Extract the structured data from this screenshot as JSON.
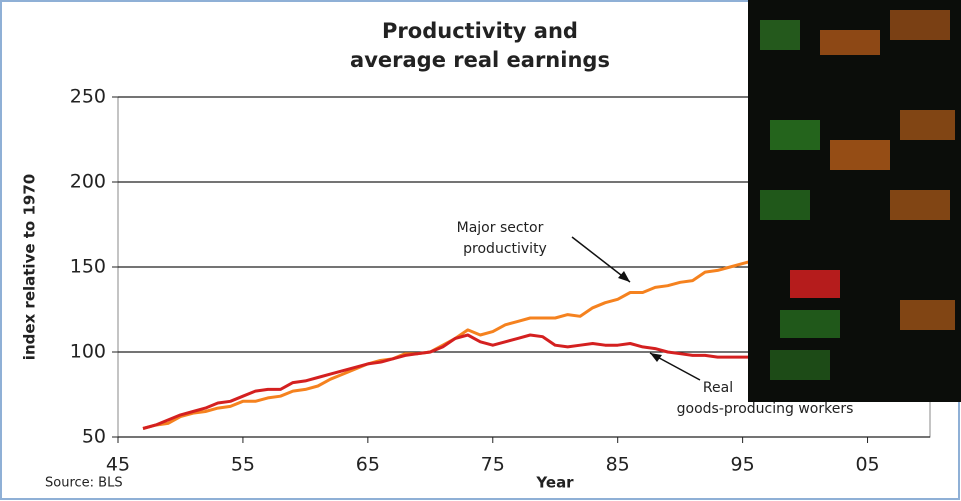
{
  "chart_data": {
    "type": "line",
    "title": [
      "Productivity and",
      "average real earnings"
    ],
    "y_label": "index relative to 1970",
    "x_label": "Year",
    "source": "Source: BLS",
    "annotations": [
      [
        "Major sector",
        "productivity"
      ],
      [
        "Real",
        "goods-producing workers"
      ]
    ],
    "x": [
      47,
      48,
      49,
      50,
      51,
      52,
      53,
      54,
      55,
      56,
      57,
      58,
      59,
      60,
      61,
      62,
      63,
      64,
      65,
      66,
      67,
      68,
      69,
      70,
      71,
      72,
      73,
      74,
      75,
      76,
      77,
      78,
      79,
      80,
      81,
      82,
      83,
      84,
      85,
      86,
      87,
      88,
      89,
      90,
      91,
      92,
      93,
      94,
      95,
      96,
      97
    ],
    "series": [
      {
        "name": "Major sector productivity",
        "color": "#f5821f",
        "values": [
          55,
          57,
          58,
          62,
          64,
          65,
          67,
          68,
          71,
          71,
          73,
          74,
          77,
          78,
          80,
          84,
          87,
          90,
          93,
          95,
          96,
          99,
          99,
          100,
          104,
          108,
          113,
          110,
          112,
          116,
          118,
          120,
          120,
          120,
          122,
          121,
          126,
          129,
          131,
          135,
          135,
          138,
          139,
          141,
          142,
          147,
          148,
          150,
          152,
          154,
          156
        ]
      },
      {
        "name": "Real earnings of goods-producing workers",
        "color": "#d42020",
        "values": [
          55,
          57,
          60,
          63,
          65,
          67,
          70,
          71,
          74,
          77,
          78,
          78,
          82,
          83,
          85,
          87,
          89,
          91,
          93,
          94,
          96,
          98,
          99,
          100,
          103,
          108,
          110,
          106,
          104,
          106,
          108,
          110,
          109,
          104,
          103,
          104,
          105,
          104,
          104,
          105,
          103,
          102,
          100,
          99,
          98,
          98,
          97,
          97,
          97,
          97,
          97
        ]
      }
    ],
    "xlim": [
      45,
      110
    ],
    "xticks": [
      45,
      55,
      65,
      75,
      85,
      95,
      {
        "value": 105,
        "label": "05"
      }
    ],
    "ylim": [
      50,
      250
    ],
    "yticks": [
      50,
      100,
      150,
      200,
      250
    ],
    "grid": true
  }
}
